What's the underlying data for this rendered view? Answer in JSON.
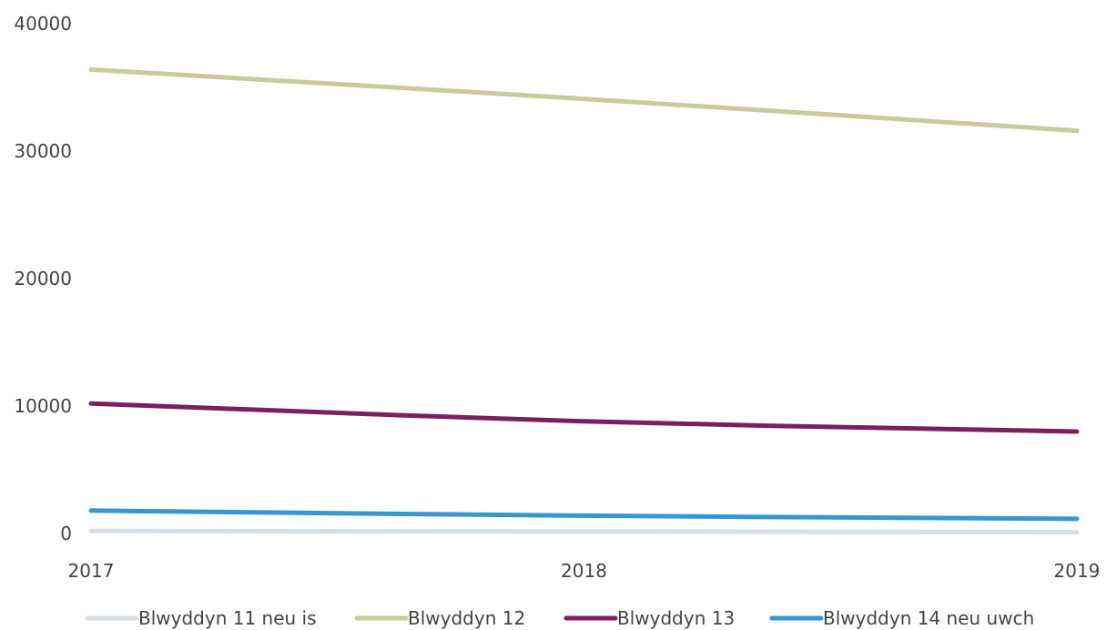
{
  "chart_data": {
    "type": "line",
    "x": [
      "2017",
      "2018",
      "2019"
    ],
    "ylim": [
      0,
      40000
    ],
    "yticks": [
      0,
      10000,
      20000,
      30000,
      40000
    ],
    "grid": false,
    "legend_position": "bottom",
    "series": [
      {
        "name": "Blwyddyn 11 neu is",
        "color": "#d6dee8",
        "values": [
          200,
          150,
          100
        ]
      },
      {
        "name": "Blwyddyn 12",
        "color": "#cbcb9a",
        "values": [
          36400,
          34100,
          31600
        ]
      },
      {
        "name": "Blwyddyn 13",
        "color": "#7b1f5e",
        "values": [
          10200,
          8800,
          8000
        ]
      },
      {
        "name": "Blwyddyn 14 neu uwch",
        "color": "#3797cf",
        "values": [
          1800,
          1400,
          1150
        ]
      }
    ]
  }
}
